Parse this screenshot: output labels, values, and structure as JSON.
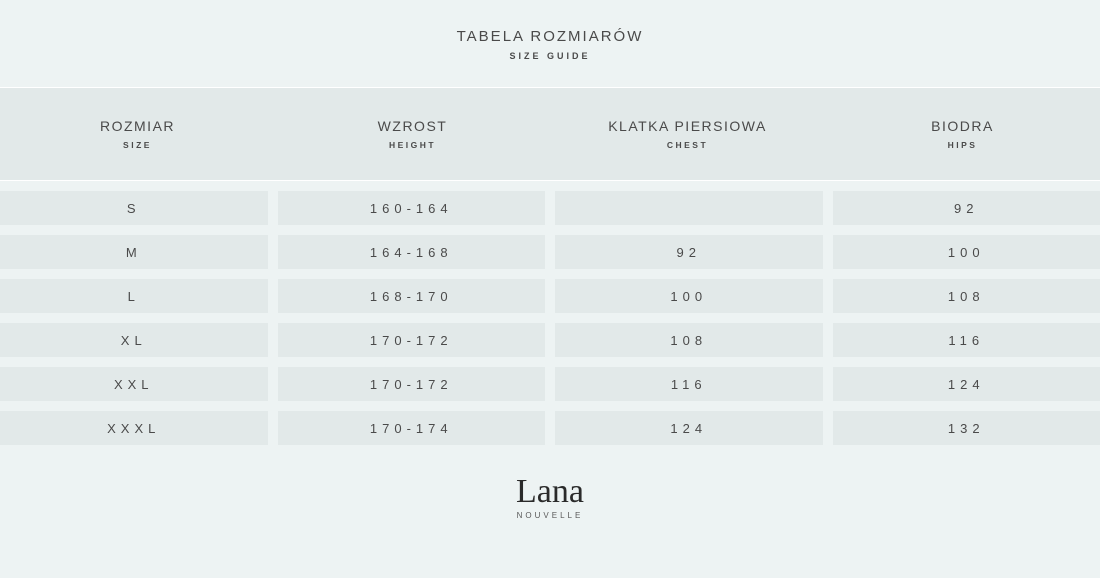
{
  "colors": {
    "page_bg": "#edf3f3",
    "cell_bg": "#e2e9e9",
    "divider": "#ffffff",
    "text": "#4a4a4a",
    "logo_text": "#2a2a2a"
  },
  "typography": {
    "title_fontsize": 15,
    "subtitle_fontsize": 9,
    "header_fontsize": 14,
    "header_sub_fontsize": 8.5,
    "cell_fontsize": 13,
    "cell_letter_spacing": 5
  },
  "title": {
    "main": "TABELA ROZMIARÓW",
    "sub": "SIZE GUIDE"
  },
  "table": {
    "type": "table",
    "columns": [
      {
        "main": "ROZMIAR",
        "sub": "SIZE"
      },
      {
        "main": "WZROST",
        "sub": "HEIGHT"
      },
      {
        "main": "KLATKA PIERSIOWA",
        "sub": "CHEST"
      },
      {
        "main": "BIODRA",
        "sub": "HIPS"
      }
    ],
    "rows": [
      {
        "size": "S",
        "height": "160-164",
        "chest": "",
        "hips": "92"
      },
      {
        "size": "M",
        "height": "164-168",
        "chest": "92",
        "hips": "100"
      },
      {
        "size": "L",
        "height": "168-170",
        "chest": "100",
        "hips": "108"
      },
      {
        "size": "XL",
        "height": "170-172",
        "chest": "108",
        "hips": "116"
      },
      {
        "size": "XXL",
        "height": "170-172",
        "chest": "116",
        "hips": "124"
      },
      {
        "size": "XXXL",
        "height": "170-174",
        "chest": "124",
        "hips": "132"
      }
    ]
  },
  "logo": {
    "name": "Lana",
    "sub": "NOUVELLE"
  }
}
